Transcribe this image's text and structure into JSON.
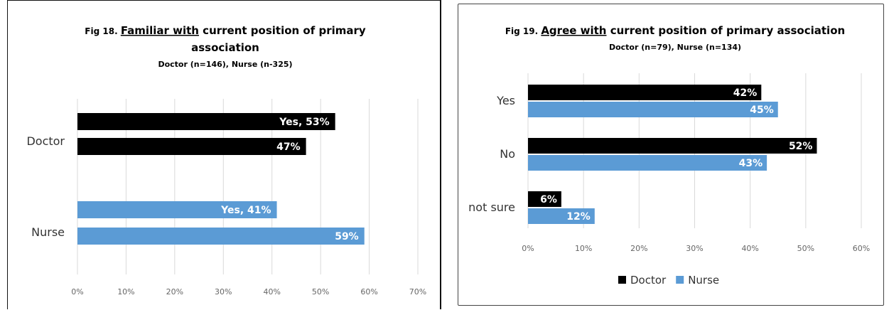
{
  "chart_data": [
    {
      "type": "bar",
      "orientation": "horizontal",
      "title_prefix": "Fig 18.",
      "title_emphasis": "Familiar with",
      "title_rest": "current position of primary",
      "title_line2": "association",
      "subtitle": "Doctor (n=146), Nurse (n-325)",
      "xlim": [
        0,
        70
      ],
      "ticks": [
        "0%",
        "10%",
        "20%",
        "30%",
        "40%",
        "50%",
        "60%",
        "70%"
      ],
      "grid": true,
      "legend": "none",
      "groups": [
        {
          "name": "Doctor",
          "color": "#000000",
          "bars": [
            {
              "value": 53,
              "label": "Yes, 53%"
            },
            {
              "value": 47,
              "label": "47%"
            }
          ]
        },
        {
          "name": "Nurse",
          "color": "#5b9bd5",
          "bars": [
            {
              "value": 41,
              "label": "Yes, 41%"
            },
            {
              "value": 59,
              "label": "59%"
            }
          ]
        }
      ]
    },
    {
      "type": "bar",
      "orientation": "horizontal",
      "title_prefix": "Fig 19.",
      "title_emphasis": "Agree with",
      "title_rest": "current position of primary association",
      "subtitle": "Doctor (n=79), Nurse (n=134)",
      "xlim": [
        0,
        60
      ],
      "ticks": [
        "0%",
        "10%",
        "20%",
        "30%",
        "40%",
        "50%",
        "60%"
      ],
      "grid": true,
      "legend": "bottom",
      "categories": [
        "Yes",
        "No",
        "not sure"
      ],
      "series": [
        {
          "name": "Doctor",
          "color": "#000000",
          "values": [
            42,
            52,
            6
          ],
          "labels": [
            "42%",
            "52%",
            "6%"
          ]
        },
        {
          "name": "Nurse",
          "color": "#5b9bd5",
          "values": [
            45,
            43,
            12
          ],
          "labels": [
            "45%",
            "43%",
            "12%"
          ]
        }
      ]
    }
  ]
}
